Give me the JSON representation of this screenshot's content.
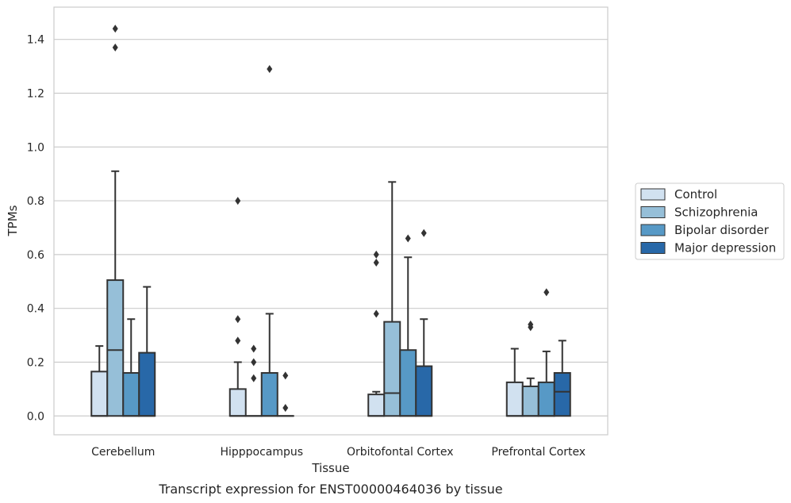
{
  "chart_data": {
    "type": "box",
    "caption": "Transcript expression for ENST00000464036 by tissue",
    "xlabel": "Tissue",
    "ylabel": "TPMs",
    "ylim": [
      -0.07,
      1.52
    ],
    "yticks": [
      "0.0",
      "0.2",
      "0.4",
      "0.6",
      "0.8",
      "1.0",
      "1.2",
      "1.4"
    ],
    "grid": "horizontal",
    "legend_position": "right",
    "categories": [
      "Cerebellum",
      "Hipppocampus",
      "Orbitofontal Cortex",
      "Prefrontal Cortex"
    ],
    "series": [
      {
        "name": "Control",
        "color": "#d1e1f0",
        "boxes": [
          {
            "q1": 0.0,
            "median": 0.0,
            "q3": 0.165,
            "whisker_low": 0.0,
            "whisker_high": 0.26,
            "outliers": []
          },
          {
            "q1": 0.0,
            "median": 0.0,
            "q3": 0.1,
            "whisker_low": 0.0,
            "whisker_high": 0.2,
            "outliers": [
              0.28,
              0.36,
              0.8
            ]
          },
          {
            "q1": 0.0,
            "median": 0.0,
            "q3": 0.08,
            "whisker_low": 0.0,
            "whisker_high": 0.09,
            "outliers": [
              0.38,
              0.57,
              0.6
            ]
          },
          {
            "q1": 0.0,
            "median": 0.0,
            "q3": 0.125,
            "whisker_low": 0.0,
            "whisker_high": 0.25,
            "outliers": []
          }
        ]
      },
      {
        "name": "Schizophrenia",
        "color": "#96bfd8",
        "boxes": [
          {
            "q1": 0.0,
            "median": 0.245,
            "q3": 0.505,
            "whisker_low": 0.0,
            "whisker_high": 0.91,
            "outliers": [
              1.37,
              1.44
            ]
          },
          {
            "q1": 0.0,
            "median": 0.0,
            "q3": 0.0,
            "whisker_low": 0.0,
            "whisker_high": 0.0,
            "outliers": [
              0.14,
              0.2,
              0.25
            ]
          },
          {
            "q1": 0.0,
            "median": 0.085,
            "q3": 0.35,
            "whisker_low": 0.0,
            "whisker_high": 0.87,
            "outliers": []
          },
          {
            "q1": 0.0,
            "median": 0.0,
            "q3": 0.11,
            "whisker_low": 0.0,
            "whisker_high": 0.14,
            "outliers": [
              0.33,
              0.34
            ]
          }
        ]
      },
      {
        "name": "Bipolar disorder",
        "color": "#5799c6",
        "boxes": [
          {
            "q1": 0.0,
            "median": 0.0,
            "q3": 0.16,
            "whisker_low": 0.0,
            "whisker_high": 0.36,
            "outliers": []
          },
          {
            "q1": 0.0,
            "median": 0.0,
            "q3": 0.16,
            "whisker_low": 0.0,
            "whisker_high": 0.38,
            "outliers": [
              1.29
            ]
          },
          {
            "q1": 0.0,
            "median": 0.0,
            "q3": 0.245,
            "whisker_low": 0.0,
            "whisker_high": 0.59,
            "outliers": [
              0.66
            ]
          },
          {
            "q1": 0.0,
            "median": 0.0,
            "q3": 0.125,
            "whisker_low": 0.0,
            "whisker_high": 0.24,
            "outliers": [
              0.46
            ]
          }
        ]
      },
      {
        "name": "Major depression",
        "color": "#2868a8",
        "boxes": [
          {
            "q1": 0.0,
            "median": 0.0,
            "q3": 0.235,
            "whisker_low": 0.0,
            "whisker_high": 0.48,
            "outliers": []
          },
          {
            "q1": 0.0,
            "median": 0.0,
            "q3": 0.0,
            "whisker_low": 0.0,
            "whisker_high": 0.0,
            "outliers": [
              0.03,
              0.15
            ]
          },
          {
            "q1": 0.0,
            "median": 0.0,
            "q3": 0.185,
            "whisker_low": 0.0,
            "whisker_high": 0.36,
            "outliers": [
              0.68
            ]
          },
          {
            "q1": 0.0,
            "median": 0.09,
            "q3": 0.16,
            "whisker_low": 0.0,
            "whisker_high": 0.28,
            "outliers": []
          }
        ]
      }
    ]
  }
}
